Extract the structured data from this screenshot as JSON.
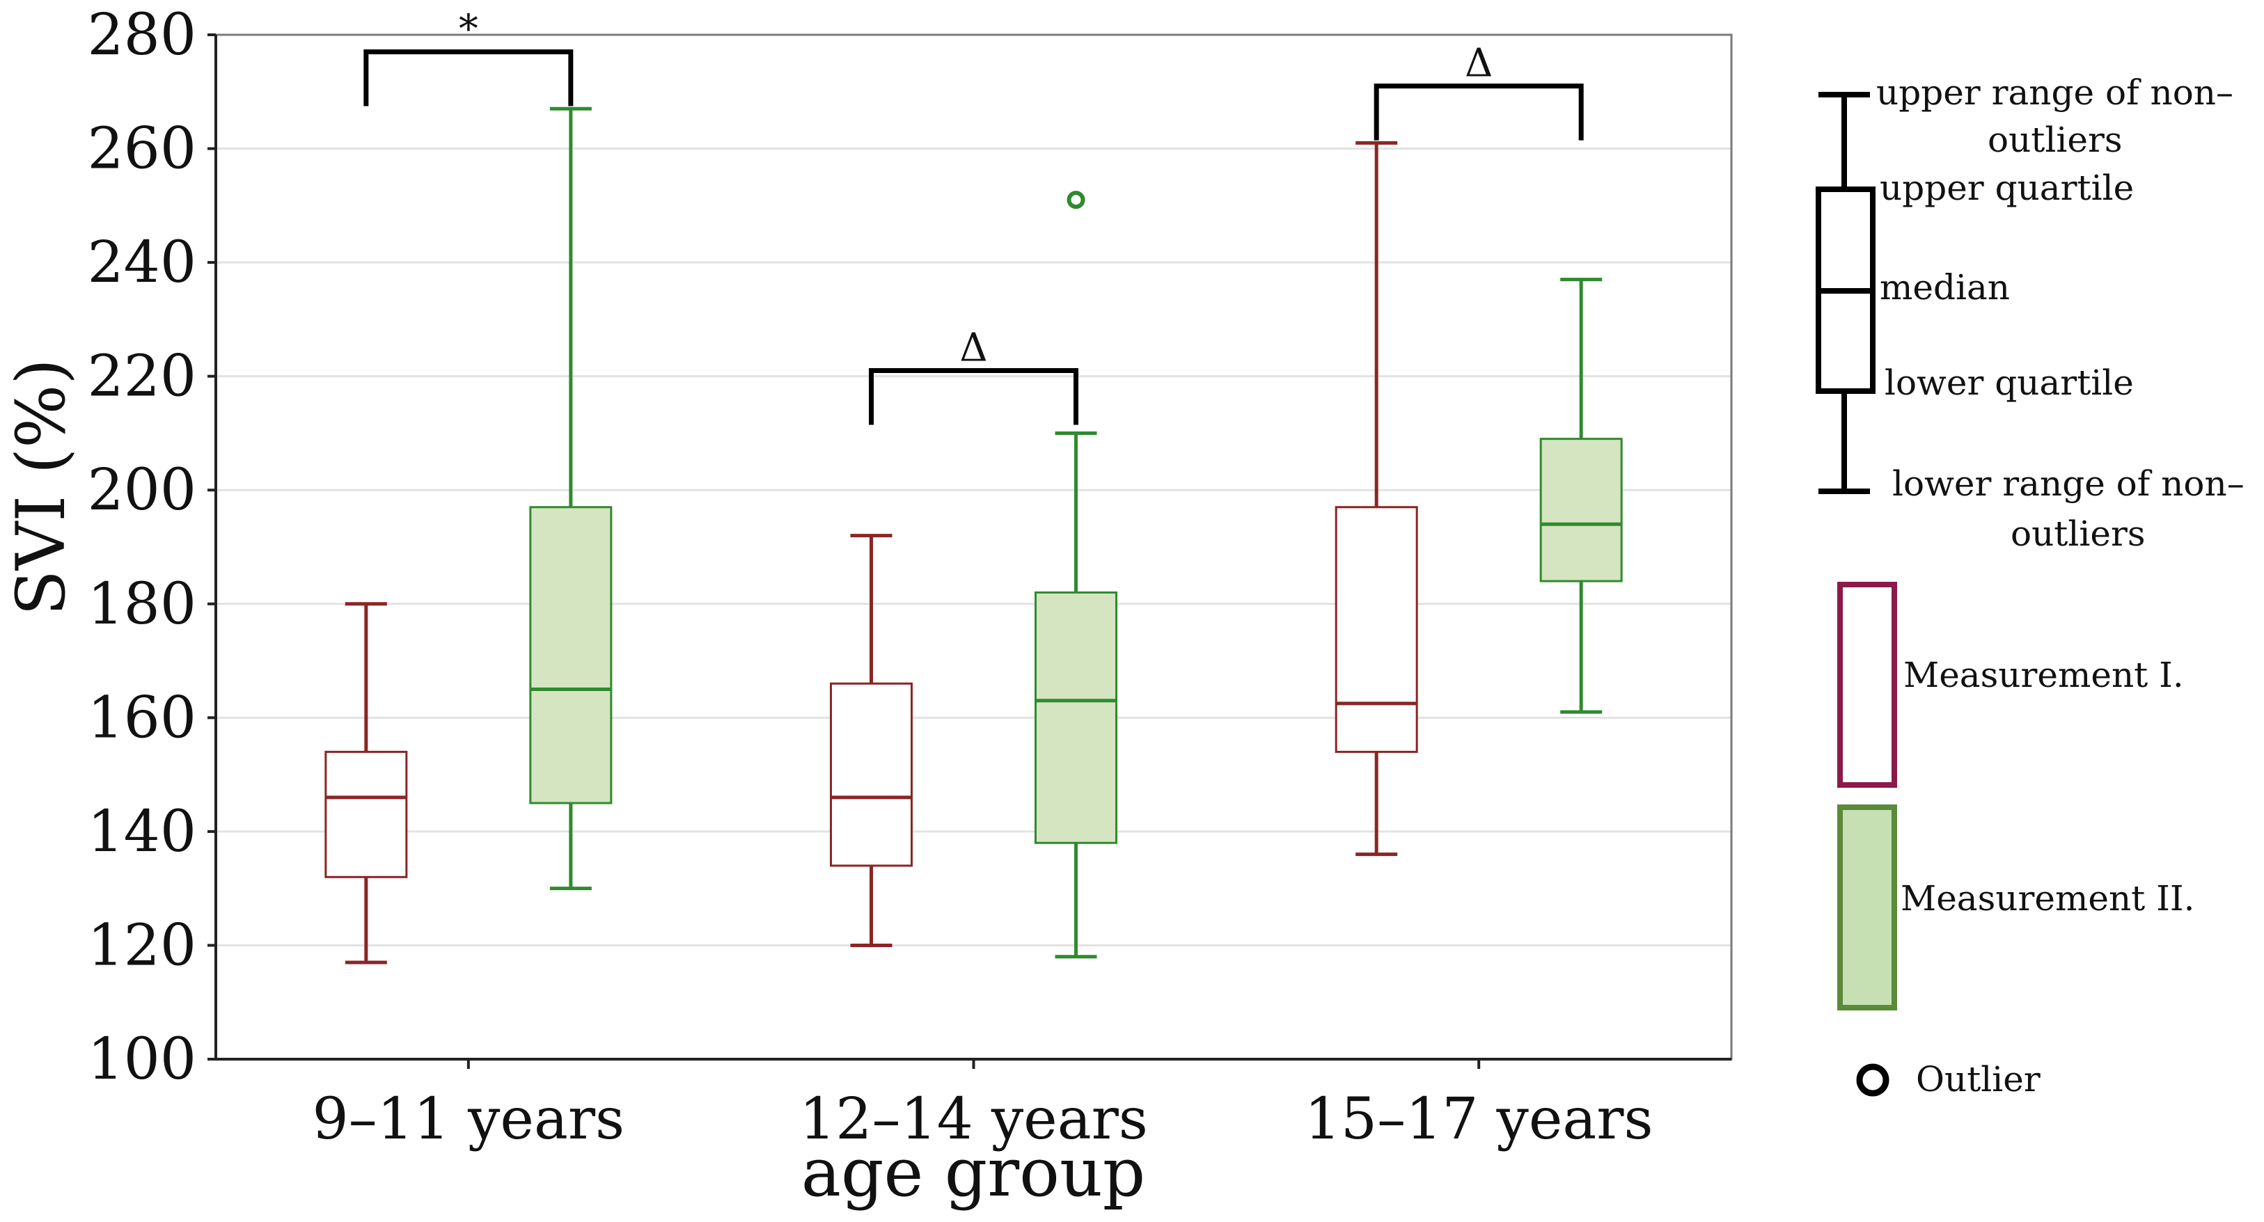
{
  "chart_data": {
    "type": "box",
    "ylabel": "SVI (%)",
    "xlabel": "age group",
    "ylim": [
      100,
      280
    ],
    "yticks": [
      100,
      120,
      140,
      160,
      180,
      200,
      220,
      240,
      260,
      280
    ],
    "grid": true,
    "categories": [
      "9–11 years",
      "12–14 years",
      "15–17 years"
    ],
    "series": [
      {
        "name": "Measurement I.",
        "color": "#8b2525",
        "fill": "#ffffff",
        "boxes": [
          {
            "low": 117,
            "q1": 132,
            "median": 146,
            "q3": 154,
            "high": 180
          },
          {
            "low": 120,
            "q1": 134,
            "median": 146,
            "q3": 166,
            "high": 192
          },
          {
            "low": 136,
            "q1": 154,
            "median": 162.5,
            "q3": 197,
            "high": 261
          }
        ]
      },
      {
        "name": "Measurement II.",
        "color": "#2e8b2e",
        "fill": "#d6e5c1",
        "boxes": [
          {
            "low": 130,
            "q1": 145,
            "median": 165,
            "q3": 197,
            "high": 267
          },
          {
            "low": 118,
            "q1": 138,
            "median": 163,
            "q3": 182,
            "high": 210
          },
          {
            "low": 161,
            "q1": 184,
            "median": 194,
            "q3": 209,
            "high": 237
          }
        ]
      }
    ],
    "outliers": [
      {
        "category": "12–14 years",
        "series": "Measurement II.",
        "value": 251
      }
    ],
    "significance": [
      {
        "category": "9–11 years",
        "symbol": "*",
        "y": 277
      },
      {
        "category": "12–14 years",
        "symbol": "Δ",
        "y": 221
      },
      {
        "category": "15–17 years",
        "symbol": "Δ",
        "y": 271
      }
    ],
    "legend": {
      "upper_range": "upper range of non–outliers",
      "upper_quartile": "upper quartile",
      "median": "median",
      "lower_quartile": "lower quartile",
      "lower_range": "lower range of non–outliers",
      "measurement_1": "Measurement I.",
      "measurement_2": "Measurement II.",
      "outlier": "Outlier",
      "measurement_1_color": "#8b1a4a",
      "measurement_2_color": "#5a8a3a",
      "measurement_2_fill": "#c6e0b4"
    }
  }
}
